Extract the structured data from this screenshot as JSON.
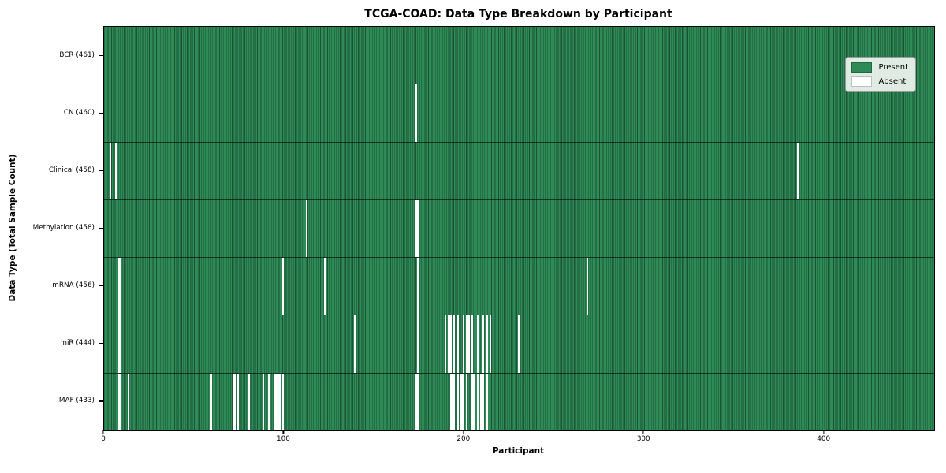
{
  "title": "TCGA-COAD: Data Type Breakdown by Participant",
  "xlabel": "Participant",
  "ylabel": "Data Type (Total Sample Count)",
  "legend": {
    "present_label": "Present",
    "absent_label": "Absent"
  },
  "colors": {
    "present": "#2E8B57",
    "absent": "#FFFFFF",
    "cell_edge": "rgba(0,0,0,0.40)",
    "row_divider": "rgba(0,0,0,0.60)"
  },
  "chart_data": {
    "type": "heatmap",
    "title": "TCGA-COAD: Data Type Breakdown by Participant",
    "xlabel": "Participant",
    "ylabel": "Data Type (Total Sample Count)",
    "legend_entries": [
      "Present",
      "Absent"
    ],
    "legend_position": "upper right",
    "n_participants": 461,
    "x_ticks": [
      0,
      100,
      200,
      300,
      400
    ],
    "x_range": [
      0,
      461
    ],
    "grid": false,
    "cell_values": "1 = Present (green), 0 = Absent (white); absent_participants lists 0-based participant indices with value 0",
    "rows": [
      {
        "name": "BCR",
        "label": "BCR (461)",
        "count": 461,
        "absent_participants": []
      },
      {
        "name": "CN",
        "label": "CN (460)",
        "count": 460,
        "absent_participants": [
          173
        ]
      },
      {
        "name": "Clinical",
        "label": "Clinical (458)",
        "count": 458,
        "absent_participants": [
          3,
          6,
          385
        ]
      },
      {
        "name": "Methylation",
        "label": "Methylation (458)",
        "count": 458,
        "absent_participants": [
          112,
          173,
          174
        ]
      },
      {
        "name": "mRNA",
        "label": "mRNA (456)",
        "count": 456,
        "absent_participants": [
          8,
          99,
          122,
          174,
          268
        ]
      },
      {
        "name": "miR",
        "label": "miR (444)",
        "count": 444,
        "absent_participants": [
          8,
          139,
          174,
          189,
          191,
          192,
          194,
          196,
          199,
          201,
          202,
          204,
          207,
          210,
          212,
          214,
          230
        ]
      },
      {
        "name": "MAF",
        "label": "MAF (433)",
        "count": 433,
        "absent_participants": [
          8,
          13,
          59,
          72,
          74,
          80,
          88,
          91,
          94,
          95,
          96,
          97,
          99,
          173,
          174,
          192,
          193,
          194,
          196,
          198,
          199,
          201,
          204,
          205,
          207,
          209,
          210,
          212
        ]
      }
    ]
  }
}
